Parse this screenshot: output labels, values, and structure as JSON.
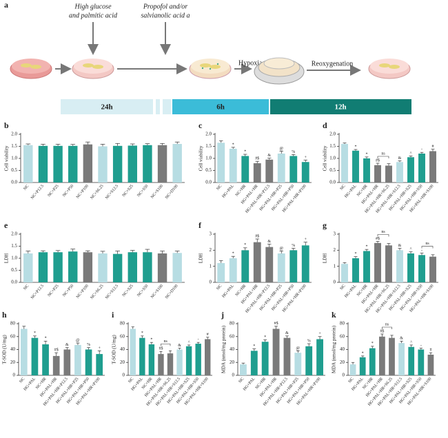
{
  "schematic": {
    "panel": "a",
    "treatment1": [
      "High glucose",
      "and palmitic acid"
    ],
    "treatment2": [
      "Propofol and/or",
      "salvianolic acid a"
    ],
    "step1": "Hypoxia",
    "step2": "Reoxygenation",
    "periods": [
      "24h",
      "6h",
      "12h"
    ]
  },
  "chart_data": [
    {
      "type": "bar",
      "panel": "b",
      "ylabel": "Cell viability",
      "categories": [
        "NC",
        "NC+P12.5",
        "NC+P25",
        "NC+P50",
        "NC+P100",
        "NC+S6.25",
        "NC+S12.5",
        "NC+S25",
        "NC+S50",
        "NC+S100",
        "NC+D100"
      ],
      "values": [
        1.55,
        1.52,
        1.52,
        1.52,
        1.58,
        1.5,
        1.52,
        1.53,
        1.55,
        1.55,
        1.6
      ],
      "errors": [
        0.05,
        0.07,
        0.07,
        0.06,
        0.1,
        0.09,
        0.1,
        0.07,
        0.06,
        0.07,
        0.08
      ],
      "colors": [
        "#b7dde3",
        "#1f9e8f",
        "#1f9e8f",
        "#1f9e8f",
        "#7a7a7a",
        "#b7dde3",
        "#1f9e8f",
        "#1f9e8f",
        "#1f9e8f",
        "#7a7a7a",
        "#b7dde3"
      ],
      "ylim": [
        0,
        2
      ],
      "yticks": [
        {
          "value": 0,
          "label": "0.0"
        },
        {
          "value": 0.5,
          "label": "0.5"
        },
        {
          "value": 1,
          "label": "1.0"
        },
        {
          "value": 1.5,
          "label": "1.5"
        },
        {
          "value": 2,
          "label": "2.0"
        }
      ]
    },
    {
      "type": "bar",
      "panel": "c",
      "ylabel": "Cell viability",
      "categories": [
        "NC",
        "HG+PAL",
        "NC+HR",
        "HG+PAL+HR",
        "HG+PAL+HR+P12.5",
        "HG+PAL+HR+P25",
        "HG+PAL+HR+P50",
        "HG+PAL+HR+P100"
      ],
      "values": [
        1.65,
        1.4,
        1.1,
        0.8,
        0.95,
        1.2,
        1.1,
        0.85
      ],
      "errors": [
        0.08,
        0.06,
        0.07,
        0.08,
        0.06,
        0.1,
        0.06,
        0.08
      ],
      "annotations": [
        null,
        "*",
        "*",
        "#$",
        "&",
        "@",
        "%",
        "+"
      ],
      "colors": [
        "#b7dde3",
        "#b7dde3",
        "#1f9e8f",
        "#7a7a7a",
        "#7a7a7a",
        "#b7dde3",
        "#1f9e8f",
        "#1f9e8f"
      ],
      "ylim": [
        0,
        2
      ],
      "yticks": [
        {
          "value": 0,
          "label": "0.0"
        },
        {
          "value": 0.5,
          "label": "0.5"
        },
        {
          "value": 1,
          "label": "1.0"
        },
        {
          "value": 1.5,
          "label": "1.5"
        },
        {
          "value": 2,
          "label": "2.0"
        }
      ]
    },
    {
      "type": "bar",
      "panel": "d",
      "ylabel": "Cell viability",
      "categories": [
        "NC",
        "HG+PAL",
        "NC+HR",
        "HG+PAL+HR",
        "HG+PAL+HR+S6.25",
        "HG+PAL+HR+S12.5",
        "HG+PAL+HR+S25",
        "HG+PAL+HR+S50",
        "HG+PAL+HR+S100"
      ],
      "values": [
        1.6,
        1.32,
        1.0,
        0.72,
        0.7,
        0.85,
        1.05,
        1.2,
        1.3
      ],
      "errors": [
        0.04,
        0.05,
        0.06,
        0.08,
        0.08,
        0.05,
        0.05,
        0.05,
        0.08
      ],
      "annotations": [
        null,
        "*",
        "*",
        "#$",
        null,
        "&",
        "^",
        "-",
        "#"
      ],
      "brackets": [
        {
          "label": "ns",
          "between": [
            "HG+PAL+HR",
            "HG+PAL+HR+S6.25"
          ]
        }
      ],
      "colors": [
        "#b7dde3",
        "#1f9e8f",
        "#1f9e8f",
        "#7a7a7a",
        "#7a7a7a",
        "#b7dde3",
        "#1f9e8f",
        "#1f9e8f",
        "#7a7a7a"
      ],
      "ylim": [
        0,
        2
      ],
      "yticks": [
        {
          "value": 0,
          "label": "0.0"
        },
        {
          "value": 0.5,
          "label": "0.5"
        },
        {
          "value": 1,
          "label": "1.0"
        },
        {
          "value": 1.5,
          "label": "1.5"
        },
        {
          "value": 2,
          "label": "2.0"
        }
      ]
    },
    {
      "type": "bar",
      "panel": "e",
      "ylabel": "LDH",
      "categories": [
        "NC",
        "NC+P12.5",
        "NC+P25",
        "NC+P50",
        "NC+P100",
        "NC+S6.25",
        "NC+S12.5",
        "NC+S25",
        "NC+S50",
        "NC+S100",
        "NC+D100"
      ],
      "values": [
        1.2,
        1.25,
        1.25,
        1.28,
        1.25,
        1.2,
        1.18,
        1.25,
        1.25,
        1.2,
        1.22
      ],
      "errors": [
        0.1,
        0.06,
        0.07,
        0.1,
        0.06,
        0.09,
        0.12,
        0.08,
        0.12,
        0.1,
        0.08
      ],
      "colors": [
        "#b7dde3",
        "#1f9e8f",
        "#1f9e8f",
        "#1f9e8f",
        "#7a7a7a",
        "#b7dde3",
        "#1f9e8f",
        "#1f9e8f",
        "#1f9e8f",
        "#7a7a7a",
        "#b7dde3"
      ],
      "ylim": [
        0,
        2
      ],
      "yticks": [
        {
          "value": 0,
          "label": "0.0"
        },
        {
          "value": 0.5,
          "label": "0.5"
        },
        {
          "value": 1,
          "label": "1.0"
        },
        {
          "value": 1.5,
          "label": "1.5"
        },
        {
          "value": 2,
          "label": "2.0"
        }
      ]
    },
    {
      "type": "bar",
      "panel": "f",
      "ylabel": "LDH",
      "categories": [
        "NC",
        "HG+PAL",
        "NC+HR",
        "HG+PAL+HR",
        "HG+PAL+HR+P12.5",
        "HG+PAL+HR+P25",
        "HG+PAL+HR+P50",
        "HG+PAL+HR+P100"
      ],
      "values": [
        1.2,
        1.5,
        2.0,
        2.5,
        2.2,
        1.8,
        2.0,
        2.3
      ],
      "errors": [
        0.15,
        0.12,
        0.15,
        0.2,
        0.18,
        0.15,
        0.12,
        0.2
      ],
      "annotations": [
        null,
        "*",
        "*",
        "#$",
        "&",
        "@",
        "%",
        "+"
      ],
      "colors": [
        "#b7dde3",
        "#b7dde3",
        "#1f9e8f",
        "#7a7a7a",
        "#7a7a7a",
        "#b7dde3",
        "#1f9e8f",
        "#1f9e8f"
      ],
      "ylim": [
        0,
        3
      ],
      "yticks": [
        0,
        1,
        2,
        3
      ]
    },
    {
      "type": "bar",
      "panel": "g",
      "ylabel": "LDH",
      "categories": [
        "NC",
        "HG+PAL",
        "NC+HR",
        "HG+PAL+HR",
        "HG+PAL+HR+S6.25",
        "HG+PAL+HR+S12.5",
        "HG+PAL+HR+S25",
        "HG+PAL+HR+S50",
        "HG+PAL+HR+S100"
      ],
      "values": [
        1.15,
        1.5,
        1.95,
        2.45,
        2.3,
        2.0,
        1.8,
        1.7,
        1.6
      ],
      "errors": [
        0.08,
        0.1,
        0.1,
        0.1,
        0.12,
        0.12,
        0.1,
        0.12,
        0.12
      ],
      "annotations": [
        null,
        "*",
        "*",
        "#$",
        null,
        "&",
        "^",
        "-",
        null
      ],
      "brackets": [
        {
          "label": "ns",
          "between": [
            "HG+PAL+HR",
            "HG+PAL+HR+S6.25"
          ]
        },
        {
          "label": "ns",
          "between": [
            "HG+PAL+HR+S50",
            "HG+PAL+HR+S100"
          ]
        }
      ],
      "colors": [
        "#b7dde3",
        "#1f9e8f",
        "#1f9e8f",
        "#7a7a7a",
        "#7a7a7a",
        "#b7dde3",
        "#1f9e8f",
        "#1f9e8f",
        "#7a7a7a"
      ],
      "ylim": [
        0,
        3
      ],
      "yticks": [
        0,
        1,
        2,
        3
      ]
    },
    {
      "type": "bar",
      "panel": "h",
      "ylabel": "T-SOD (U/mg)",
      "categories": [
        "NC",
        "HG+PAL",
        "NC+HR",
        "HG+PAL+HR",
        "HG+PAL+HR+P12.5",
        "HG+PAL+HR+P25",
        "HG+PAL+HR+P50",
        "HG+PAL+HR+P100"
      ],
      "values": [
        72,
        58,
        48,
        30,
        40,
        47,
        40,
        33
      ],
      "errors": [
        4,
        3,
        5,
        5,
        3,
        3,
        3,
        5
      ],
      "annotations": [
        null,
        "*",
        "*",
        "#$",
        "&",
        "@",
        "%",
        "+"
      ],
      "colors": [
        "#b7dde3",
        "#1f9e8f",
        "#1f9e8f",
        "#7a7a7a",
        "#7a7a7a",
        "#b7dde3",
        "#1f9e8f",
        "#1f9e8f"
      ],
      "ylim": [
        0,
        80
      ],
      "yticks": [
        0,
        20,
        40,
        60,
        80
      ]
    },
    {
      "type": "bar",
      "panel": "i",
      "ylabel": "T-SOD (U/mg)",
      "categories": [
        "NC",
        "HG+PAL",
        "NC+HR",
        "HG+PAL+HR",
        "HG+PAL+HR+S6.25",
        "HG+PAL+HR+S12.5",
        "HG+PAL+HR+S25",
        "HG+PAL+HR+S50",
        "HG+PAL+HR+S100"
      ],
      "values": [
        72,
        58,
        48,
        33,
        34,
        40,
        45,
        49,
        56
      ],
      "errors": [
        3,
        3,
        3,
        4,
        4,
        2,
        2,
        2,
        3
      ],
      "annotations": [
        null,
        "*",
        "*",
        "#$",
        null,
        "&",
        "^",
        "-",
        "#"
      ],
      "brackets": [
        {
          "label": "ns",
          "between": [
            "HG+PAL+HR",
            "HG+PAL+HR+S6.25"
          ]
        }
      ],
      "colors": [
        "#b7dde3",
        "#1f9e8f",
        "#1f9e8f",
        "#7a7a7a",
        "#7a7a7a",
        "#b7dde3",
        "#1f9e8f",
        "#1f9e8f",
        "#7a7a7a"
      ],
      "ylim": [
        0,
        80
      ],
      "yticks": [
        0,
        20,
        40,
        60,
        80
      ]
    },
    {
      "type": "bar",
      "panel": "j",
      "ylabel": "MDA (nmol/mg protein)",
      "categories": [
        "NC",
        "HG+PAL",
        "NC+HR",
        "HG+PAL+HR",
        "HG+PAL+HR+P12.5",
        "HG+PAL+HR+P25",
        "HG+PAL+HR+P50",
        "HG+PAL+HR+P100"
      ],
      "values": [
        17,
        38,
        52,
        72,
        58,
        35,
        45,
        56
      ],
      "errors": [
        2,
        3,
        3,
        4,
        3,
        3,
        4,
        4
      ],
      "annotations": [
        null,
        "*",
        "*",
        "#$",
        "&",
        "@",
        "%",
        "+"
      ],
      "colors": [
        "#b7dde3",
        "#1f9e8f",
        "#1f9e8f",
        "#7a7a7a",
        "#7a7a7a",
        "#b7dde3",
        "#1f9e8f",
        "#1f9e8f"
      ],
      "ylim": [
        0,
        80
      ],
      "yticks": [
        0,
        20,
        40,
        60,
        80
      ]
    },
    {
      "type": "bar",
      "panel": "k",
      "ylabel": "MDA (nmol/mg protein)",
      "categories": [
        "NC",
        "HG+PAL",
        "NC+HR",
        "HG+PAL+HR",
        "HG+PAL+HR+S6.25",
        "HG+PAL+HR+S12.5",
        "HG+PAL+HR+S25",
        "HG+PAL+HR+S50",
        "HG+PAL+HR+S100"
      ],
      "values": [
        17,
        28,
        42,
        60,
        58,
        50,
        44,
        40,
        32
      ],
      "errors": [
        3,
        2,
        3,
        4,
        4,
        3,
        3,
        2,
        3
      ],
      "annotations": [
        null,
        "*",
        "*",
        "#$",
        null,
        "&",
        "^",
        "-",
        "#"
      ],
      "brackets": [
        {
          "label": "ns",
          "between": [
            "HG+PAL+HR",
            "HG+PAL+HR+S6.25"
          ]
        }
      ],
      "colors": [
        "#b7dde3",
        "#1f9e8f",
        "#1f9e8f",
        "#7a7a7a",
        "#7a7a7a",
        "#b7dde3",
        "#1f9e8f",
        "#1f9e8f",
        "#7a7a7a"
      ],
      "ylim": [
        0,
        80
      ],
      "yticks": [
        0,
        20,
        40,
        60,
        80
      ]
    }
  ]
}
